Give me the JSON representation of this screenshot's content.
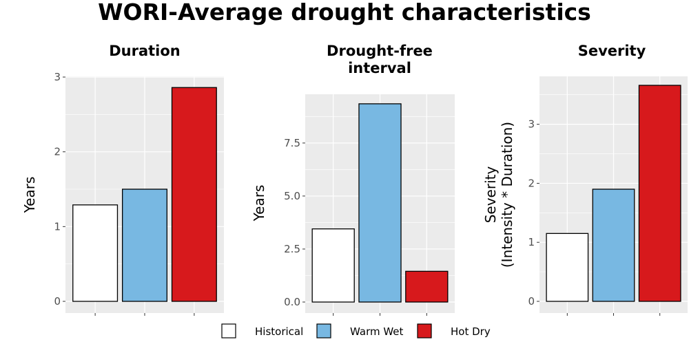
{
  "title": "WORI-Average drought characteristics",
  "chart_data": [
    {
      "type": "bar",
      "title": "Duration",
      "ylabel": "Years",
      "categories": [
        "Historical",
        "Warm Wet",
        "Hot Dry"
      ],
      "values": [
        1.29,
        1.5,
        2.86
      ],
      "ylim": [
        0,
        3.0
      ],
      "yticks": [
        0,
        1,
        2,
        3
      ],
      "ytick_labels": [
        "0",
        "1",
        "2",
        "3"
      ]
    },
    {
      "type": "bar",
      "title": "Drought-free interval",
      "ylabel": "Years",
      "categories": [
        "Historical",
        "Warm Wet",
        "Hot Dry"
      ],
      "values": [
        3.45,
        9.35,
        1.45
      ],
      "ylim": [
        0,
        9.8
      ],
      "yticks": [
        0,
        2.5,
        5.0,
        7.5
      ],
      "ytick_labels": [
        "0.0",
        "2.5",
        "5.0",
        "7.5"
      ]
    },
    {
      "type": "bar",
      "title": "Severity",
      "ylabel": "Severity (Intensity * Duration)",
      "categories": [
        "Historical",
        "Warm Wet",
        "Hot Dry"
      ],
      "values": [
        1.15,
        1.9,
        3.66
      ],
      "ylim": [
        0,
        3.8
      ],
      "yticks": [
        0,
        1,
        2,
        3
      ],
      "ytick_labels": [
        "0",
        "1",
        "2",
        "3"
      ]
    }
  ],
  "legend": {
    "position": "bottom",
    "items": [
      {
        "label": "Historical",
        "color": "#ffffff"
      },
      {
        "label": "Warm Wet",
        "color": "#78b8e2"
      },
      {
        "label": "Hot Dry",
        "color": "#d7191c"
      }
    ]
  },
  "colors": {
    "panel_background": "#ebebeb",
    "gridline": "#ffffff",
    "bar_outline": "#000000"
  },
  "grid": true
}
